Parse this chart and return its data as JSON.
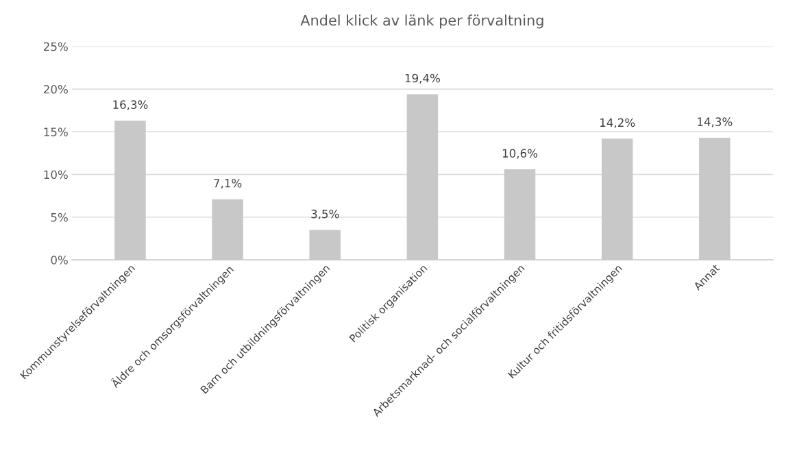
{
  "chart_data": {
    "type": "bar",
    "title": "Andel klick av länk per förvaltning",
    "categories": [
      "Kommunstyrelseförvaltningen",
      "Äldre och omsorgsförvaltningen",
      "Barn och utbildningsförvaltningen",
      "Politisk organisation",
      "Arbetsmarknad- och socialförvaltningen",
      "Kultur och fritidsförvaltningen",
      "Annat"
    ],
    "values": [
      16.3,
      7.1,
      3.5,
      19.4,
      10.6,
      14.2,
      14.3
    ],
    "value_labels": [
      "16,3%",
      "7,1%",
      "3,5%",
      "19,4%",
      "10,6%",
      "14,2%",
      "14,3%"
    ],
    "color": "#c8c8c8",
    "ylim": [
      0,
      25
    ],
    "yticks": [
      {
        "value": 0,
        "label": "0%"
      },
      {
        "value": 5,
        "label": "5%"
      },
      {
        "value": 10,
        "label": "10%"
      },
      {
        "value": 15,
        "label": "15%"
      },
      {
        "value": 20,
        "label": "20%"
      },
      {
        "value": 25,
        "label": "25%"
      }
    ],
    "grid": "y"
  }
}
